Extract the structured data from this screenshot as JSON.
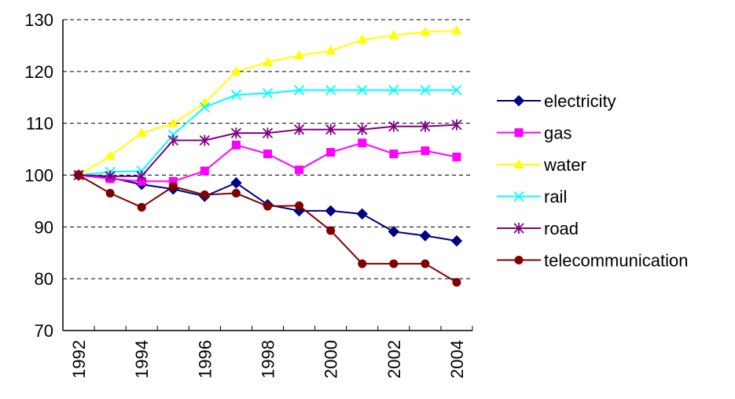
{
  "chart_data": {
    "type": "line",
    "x": [
      1992,
      1993,
      1994,
      1995,
      1996,
      1997,
      1998,
      1999,
      2000,
      2001,
      2002,
      2003,
      2004
    ],
    "x_tick_labels": [
      "1992",
      "1994",
      "1996",
      "1998",
      "2000",
      "2002",
      "2004"
    ],
    "ylim": [
      70,
      130
    ],
    "y_tick_labels": [
      "70",
      "80",
      "90",
      "100",
      "110",
      "120",
      "130"
    ],
    "grid": "horizontal dashed",
    "legend_position": "right",
    "series": [
      {
        "name": "electricity",
        "color": "#000080",
        "marker": "diamond",
        "values": [
          100,
          99.5,
          98.2,
          97.3,
          95.9,
          98.5,
          94.3,
          93.1,
          93.1,
          92.5,
          89.1,
          88.3,
          87.3
        ]
      },
      {
        "name": "gas",
        "color": "#FF00FF",
        "marker": "square",
        "values": [
          100,
          99.3,
          98.8,
          98.8,
          100.8,
          105.8,
          104.1,
          101,
          104.4,
          106.2,
          104.1,
          104.7,
          103.5
        ]
      },
      {
        "name": "water",
        "color": "#FFFF00",
        "marker": "triangle",
        "values": [
          100,
          103.7,
          108.1,
          110,
          113.9,
          120,
          121.8,
          123.1,
          124,
          126.1,
          127,
          127.6,
          127.9
        ]
      },
      {
        "name": "rail",
        "color": "#00FFFF",
        "marker": "x",
        "values": [
          100,
          100.6,
          100.8,
          107.8,
          113.1,
          115.5,
          115.8,
          116.4,
          116.4,
          116.4,
          116.4,
          116.4,
          116.4
        ]
      },
      {
        "name": "road",
        "color": "#800080",
        "marker": "star",
        "values": [
          100,
          99.8,
          99.8,
          106.7,
          106.7,
          108.1,
          108.1,
          108.8,
          108.8,
          108.8,
          109.4,
          109.4,
          109.7
        ]
      },
      {
        "name": "telecommunication",
        "color": "#800000",
        "marker": "circle",
        "values": [
          100,
          96.5,
          93.8,
          97.8,
          96.2,
          96.5,
          94,
          94.1,
          89.3,
          82.9,
          82.9,
          82.9,
          79.3
        ]
      }
    ]
  }
}
